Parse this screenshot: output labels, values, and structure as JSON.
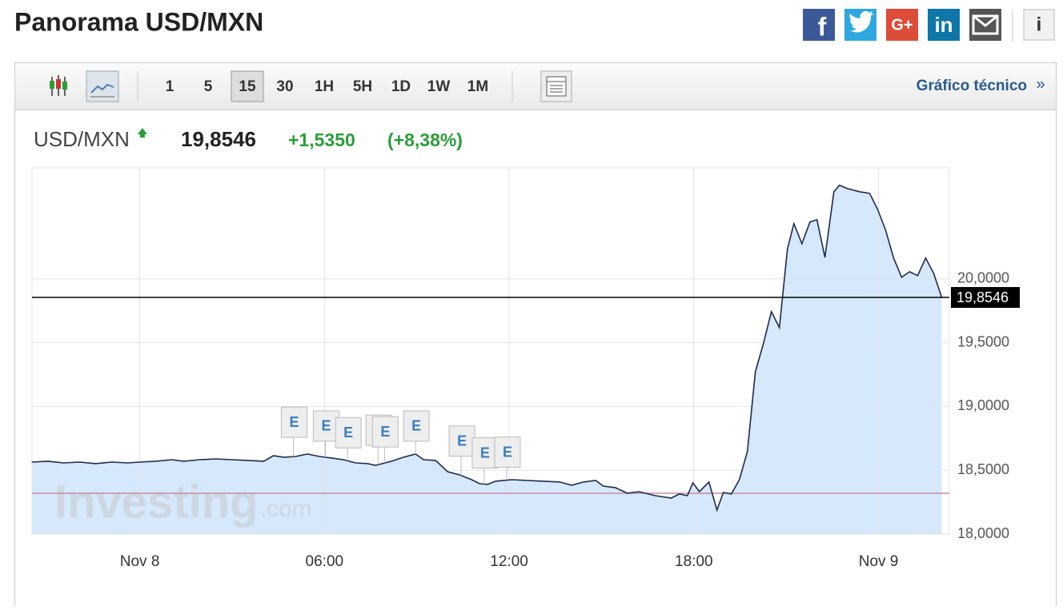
{
  "header": {
    "title": "Panorama USD/MXN"
  },
  "share": {
    "facebook": "f",
    "google": "G+",
    "linkedin": "in",
    "info": "i"
  },
  "toolbar": {
    "intervals": [
      "1",
      "5",
      "15",
      "30",
      "1H",
      "5H",
      "1D",
      "1W",
      "1M"
    ],
    "selected_interval": 2,
    "link": "Gráfico técnico",
    "link_arrow": "»"
  },
  "quote": {
    "symbol": "USD/MXN",
    "price": "19,8546",
    "change": "+1,5350",
    "change_pct": "(+8,38%)"
  },
  "chart_data": {
    "type": "line",
    "watermark": "Investing",
    "watermark_suffix": ".com",
    "color": "#1f2a4d",
    "fill": "#d6e8fb",
    "x": [
      -3.51,
      -2.99,
      -2.47,
      -1.95,
      -1.43,
      -0.91,
      -0.39,
      0,
      0.52,
      1.04,
      1.43,
      1.95,
      2.47,
      2.99,
      3.51,
      4.03,
      4.34,
      4.68,
      5.06,
      5.45,
      5.84,
      6.23,
      6.62,
      7.01,
      7.4,
      7.66,
      8.18,
      8.57,
      8.96,
      9.22,
      9.61,
      10.0,
      10.39,
      10.78,
      11.04,
      11.3,
      11.56,
      12.08,
      12.6,
      13.12,
      13.64,
      14.03,
      14.42,
      14.81,
      15.06,
      15.45,
      15.84,
      16.23,
      16.75,
      17.27,
      17.53,
      17.79,
      17.97,
      18.18,
      18.49,
      18.75,
      18.96,
      19.22,
      19.48,
      19.74,
      20.0,
      20.26,
      20.52,
      20.78,
      21.04,
      21.25,
      21.51,
      21.77,
      22.0,
      22.26,
      22.55,
      22.73,
      22.99,
      23.38,
      23.71,
      23.97,
      24.23,
      24.49,
      24.75,
      25.01,
      25.27,
      25.53,
      25.79,
      26.05
    ],
    "series": [
      {
        "name": "USD/MXN",
        "color": "#1f2a4d",
        "values": [
          18.564,
          18.571,
          18.558,
          18.564,
          18.552,
          18.564,
          18.558,
          18.564,
          18.571,
          18.583,
          18.571,
          18.583,
          18.589,
          18.583,
          18.577,
          18.571,
          18.614,
          18.602,
          18.608,
          18.627,
          18.608,
          18.596,
          18.583,
          18.558,
          18.552,
          18.539,
          18.571,
          18.602,
          18.627,
          18.583,
          18.577,
          18.489,
          18.464,
          18.426,
          18.395,
          18.389,
          18.414,
          18.426,
          18.42,
          18.414,
          18.408,
          18.383,
          18.408,
          18.42,
          18.376,
          18.364,
          18.32,
          18.332,
          18.301,
          18.282,
          18.314,
          18.301,
          18.401,
          18.332,
          18.408,
          18.188,
          18.326,
          18.314,
          18.426,
          18.646,
          19.273,
          19.492,
          19.743,
          19.618,
          20.232,
          20.433,
          20.276,
          20.445,
          20.464,
          20.169,
          20.683,
          20.734,
          20.708,
          20.683,
          20.671,
          20.545,
          20.382,
          20.163,
          20.013,
          20.056,
          20.025,
          20.163,
          20.044,
          19.8546
        ]
      }
    ],
    "last_value": 19.8546,
    "last_label": "19,8546",
    "prev_close": 18.3196,
    "prev_close_color": "#c98aa0",
    "events": [
      {
        "x": 4.99,
        "label": "E"
      },
      {
        "x": 6.03,
        "label": "E"
      },
      {
        "x": 6.75,
        "label": "E"
      },
      {
        "x": 7.74,
        "label": "E"
      },
      {
        "x": 7.95,
        "label": "E"
      },
      {
        "x": 8.96,
        "label": "E"
      },
      {
        "x": 10.44,
        "label": "E"
      },
      {
        "x": 11.19,
        "label": "E"
      },
      {
        "x": 11.92,
        "label": "E"
      }
    ],
    "xlim": [
      -3.5,
      26.3
    ],
    "xticks": [
      {
        "value": 0,
        "label": "Nov 8"
      },
      {
        "value": 6,
        "label": "06:00"
      },
      {
        "value": 12,
        "label": "12:00"
      },
      {
        "value": 18,
        "label": "18:00"
      },
      {
        "value": 24,
        "label": "Nov 9"
      }
    ],
    "ylim": [
      18.0,
      20.87
    ],
    "yticks": [
      {
        "value": 18,
        "label": "18,0000"
      },
      {
        "value": 18.5,
        "label": "18,5000"
      },
      {
        "value": 19,
        "label": "19,0000"
      },
      {
        "value": 19.5,
        "label": "19,5000"
      },
      {
        "value": 20,
        "label": "20,0000"
      }
    ],
    "grid": true
  }
}
